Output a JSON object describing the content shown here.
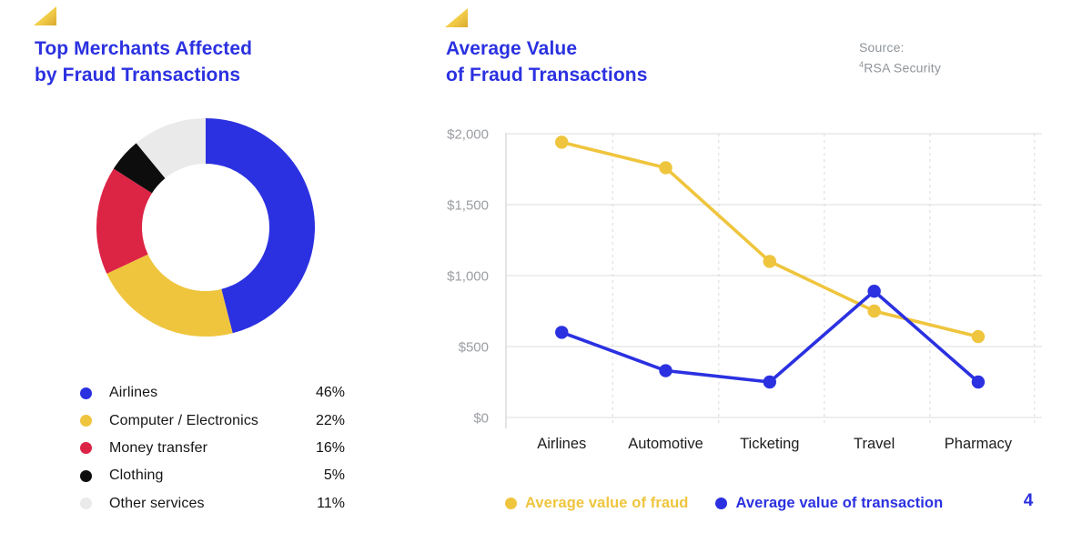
{
  "page": {
    "number": "4",
    "background": "#ffffff"
  },
  "colors": {
    "accent_blue": "#2b31e0",
    "accent_yellow": "#efc53e",
    "accent_red": "#dc2445",
    "accent_black": "#0d0d0d",
    "accent_light_gray": "#eaeaea",
    "grid_solid": "#e4e4e4",
    "grid_dashed": "#dadada",
    "axis_text": "#9b9ea3",
    "category_text": "#1d1d1f",
    "muted_text": "#8f9499"
  },
  "left_panel": {
    "title_line1": "Top Merchants Affected",
    "title_line2": "by Fraud Transactions"
  },
  "right_panel": {
    "title_line1": "Average Value",
    "title_line2": "of Fraud Transactions",
    "source_label": "Source:",
    "source_sup": "4",
    "source_name": "RSA Security"
  },
  "chart_data": [
    {
      "type": "pie",
      "subtype": "donut",
      "title": "Top Merchants Affected by Fraud Transactions",
      "start": "top",
      "direction": "clockwise",
      "inner_radius_ratio": 0.58,
      "segments": [
        {
          "label": "Airlines",
          "value_pct": 46,
          "display": "46%",
          "color": "#2b31e0"
        },
        {
          "label": "Computer / Electronics",
          "value_pct": 22,
          "display": "22%",
          "color": "#efc53e"
        },
        {
          "label": "Money transfer",
          "value_pct": 16,
          "display": "16%",
          "color": "#dc2445"
        },
        {
          "label": "Clothing",
          "value_pct": 5,
          "display": "5%",
          "color": "#0d0d0d"
        },
        {
          "label": "Other services",
          "value_pct": 11,
          "display": "11%",
          "color": "#eaeaea"
        }
      ]
    },
    {
      "type": "line",
      "title": "Average Value of Fraud Transactions",
      "categories": [
        "Airlines",
        "Automotive",
        "Ticketing",
        "Travel",
        "Pharmacy"
      ],
      "series": [
        {
          "name": "Average value of fraud",
          "color": "#efc53e",
          "values": [
            1940,
            1760,
            1100,
            750,
            570
          ]
        },
        {
          "name": "Average value of transaction",
          "color": "#2b31e0",
          "values": [
            600,
            330,
            250,
            890,
            250
          ]
        }
      ],
      "y_ticks": [
        0,
        500,
        1000,
        1500,
        2000
      ],
      "y_tick_labels": [
        "$0",
        "$500",
        "$1,000",
        "$1,500",
        "$2,000"
      ],
      "ylim": [
        0,
        2000
      ],
      "grid": {
        "horizontal": "solid",
        "vertical": "dashed"
      },
      "legend_position": "bottom"
    }
  ]
}
